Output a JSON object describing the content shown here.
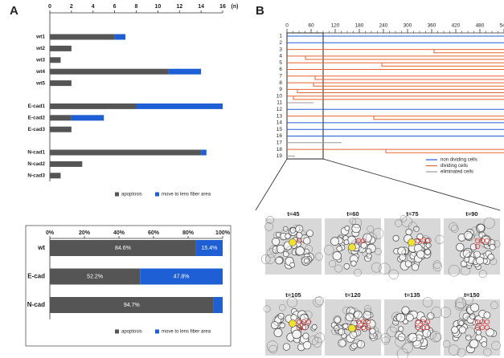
{
  "panel_labels": [
    "A",
    "B"
  ],
  "images": {
    "labels": [
      "t=45",
      "t=60",
      "t=75",
      "t=90",
      "t=105",
      "t=120",
      "t=135",
      "t=150"
    ]
  },
  "chart_data": [
    {
      "type": "bar",
      "orientation": "horizontal",
      "stacked": true,
      "x_label": "(n)",
      "categories": [
        "wt1",
        "wt2",
        "wt3",
        "wt4",
        "wt5",
        null,
        "E-cad1",
        "E-cad2",
        "E-cad3",
        null,
        "N-cad1",
        "N-cad2",
        "N-cad3"
      ],
      "series": [
        {
          "name": "apoptosis",
          "color": "#555555",
          "values": [
            6,
            2,
            1,
            11,
            2,
            null,
            8,
            2,
            2,
            null,
            14,
            3,
            1
          ]
        },
        {
          "name": "move to lens fiber area",
          "color": "#1f5fd6",
          "values": [
            1,
            0,
            0,
            3,
            0,
            null,
            8,
            3,
            0,
            null,
            0.5,
            0,
            0
          ]
        }
      ],
      "xlim": [
        0,
        16
      ],
      "xticks": [
        0,
        2,
        4,
        6,
        8,
        10,
        12,
        14,
        16
      ]
    },
    {
      "type": "bar",
      "orientation": "horizontal",
      "stacked": true,
      "categories": [
        "wt",
        "E-cad",
        "N-cad"
      ],
      "series": [
        {
          "name": "apoptosis",
          "color": "#555555",
          "values": [
            84.6,
            52.2,
            94.7
          ],
          "value_labels": [
            "84.6%",
            "52.2%",
            "94.7%"
          ]
        },
        {
          "name": "move to lens fiber area",
          "color": "#1f5fd6",
          "values": [
            15.4,
            47.8,
            5.3
          ],
          "value_labels": [
            "15.4%",
            "47.8%",
            null
          ]
        }
      ],
      "xlim": [
        0,
        100
      ],
      "xticks": [
        {
          "value": 0,
          "label": "0%"
        },
        {
          "value": 20,
          "label": "20%"
        },
        {
          "value": 40,
          "label": "40%"
        },
        {
          "value": 60,
          "label": "60%"
        },
        {
          "value": 80,
          "label": "80%"
        },
        {
          "value": 100,
          "label": "100%"
        }
      ]
    },
    {
      "type": "lineage",
      "x_label": "(min)",
      "categories": [
        "1",
        "2",
        "3",
        "4",
        "5",
        "6",
        "7",
        "8",
        "9",
        "10",
        "11",
        "12",
        "13",
        "14",
        "15",
        "16",
        "17",
        "18",
        "19"
      ],
      "series": [
        {
          "name": "non dividing cells",
          "color": "#1f5fd6"
        },
        {
          "name": "dividing cells",
          "color": "#e8622c"
        },
        {
          "name": "eliminated cells",
          "color": "#999999"
        }
      ],
      "cell_class": [
        0,
        0,
        1,
        1,
        1,
        1,
        1,
        1,
        1,
        1,
        2,
        0,
        1,
        0,
        0,
        0,
        2,
        1,
        2
      ],
      "end_times": [
        720,
        720,
        720,
        720,
        720,
        720,
        720,
        720,
        720,
        720,
        66,
        720,
        720,
        720,
        720,
        720,
        136,
        720,
        20
      ],
      "division_times": [
        null,
        null,
        366,
        46,
        236,
        null,
        70,
        66,
        26,
        16,
        null,
        null,
        216,
        null,
        null,
        null,
        null,
        246,
        null
      ],
      "xlim": [
        0,
        720
      ],
      "xticks": [
        0,
        60,
        120,
        180,
        240,
        300,
        360,
        420,
        480,
        540,
        600,
        660,
        720
      ]
    }
  ]
}
